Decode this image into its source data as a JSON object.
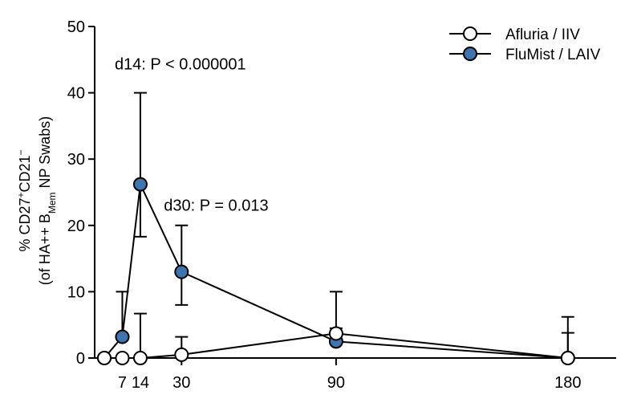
{
  "chart_data": {
    "type": "line",
    "title": "",
    "xlabel": "",
    "ylabel_line1": "% CD27",
    "ylabel_line1_sup1": "+",
    "ylabel_line1_mid": "CD21",
    "ylabel_line1_sup2": "−",
    "ylabel_line2_pre": "(of HA++ B",
    "ylabel_line2_sub": "Mem",
    "ylabel_line2_post": " NP Swabs)",
    "xlim": [
      -15,
      190
    ],
    "ylim": [
      0,
      50
    ],
    "x_ticks": [
      7,
      14,
      30,
      90,
      180
    ],
    "x_tick_labels": [
      "7",
      "14",
      "30",
      "90",
      "180"
    ],
    "y_ticks": [
      0,
      10,
      20,
      30,
      40,
      50
    ],
    "y_tick_labels": [
      "0",
      "10",
      "20",
      "30",
      "40",
      "50"
    ],
    "grid": false,
    "legend_position": "top-right",
    "series": [
      {
        "name": "Afluria / IIV",
        "marker_fill": "#ffffff",
        "x": [
          0,
          7,
          14,
          30,
          90,
          180
        ],
        "y": [
          0,
          0,
          0,
          0.5,
          3.7,
          0
        ],
        "err_upper": [
          0,
          0,
          6.7,
          3.2,
          10,
          6.2
        ],
        "err_lower": [
          0,
          0,
          0,
          0,
          0,
          0
        ]
      },
      {
        "name": "FluMist / LAIV",
        "marker_fill": "#3f74ad",
        "x": [
          0,
          7,
          14,
          30,
          90,
          180
        ],
        "y": [
          0,
          3.2,
          26.2,
          13,
          2.5,
          0
        ],
        "err_upper": [
          0,
          10,
          40,
          20,
          4.5,
          3.8
        ],
        "err_lower": [
          0,
          0,
          18.3,
          8,
          0,
          0
        ]
      }
    ],
    "annotations": [
      {
        "text": "d14: P < 0.000001",
        "x": 14,
        "y": 43.5
      },
      {
        "text": "d30: P = 0.013",
        "x": 30,
        "y": 22.2
      }
    ]
  }
}
